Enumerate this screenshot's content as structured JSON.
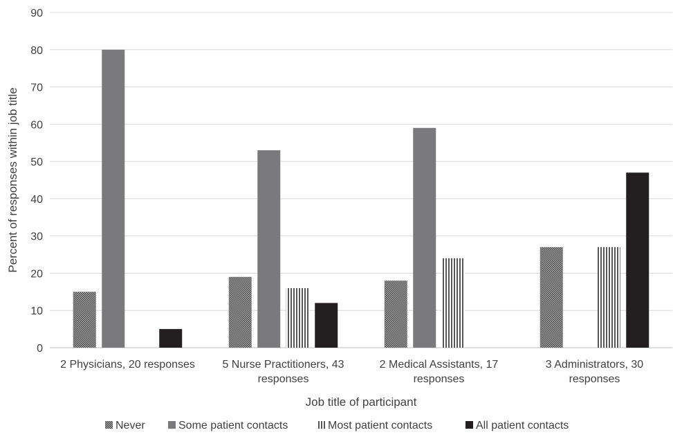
{
  "chart_data": {
    "type": "bar",
    "categories": [
      [
        "2 Physicians, 20 responses"
      ],
      [
        "5 Nurse Practitioners, 43",
        "responses"
      ],
      [
        "2 Medical Assistants, 17",
        "responses"
      ],
      [
        "3 Administrators, 30",
        "responses"
      ]
    ],
    "series": [
      {
        "name": "Never",
        "values": [
          15,
          19,
          18,
          27
        ],
        "pattern": "dots",
        "color": "#6e6e6e"
      },
      {
        "name": "Some patient contacts",
        "values": [
          80,
          53,
          59,
          0
        ],
        "pattern": "solid",
        "color": "#7a7a7d"
      },
      {
        "name": "Most patient contacts",
        "values": [
          0,
          16,
          24,
          27
        ],
        "pattern": "vstripes",
        "color": "#6e6e6e"
      },
      {
        "name": "All patient contacts",
        "values": [
          5,
          12,
          0,
          47
        ],
        "pattern": "solid",
        "color": "#231f20"
      }
    ],
    "xlabel": "Job title of participant",
    "ylabel": "Percent of responses within job title",
    "ylim": [
      0,
      90
    ],
    "yticks": [
      0,
      10,
      20,
      30,
      40,
      50,
      60,
      70,
      80,
      90
    ],
    "grid": true,
    "legend": "bottom"
  }
}
